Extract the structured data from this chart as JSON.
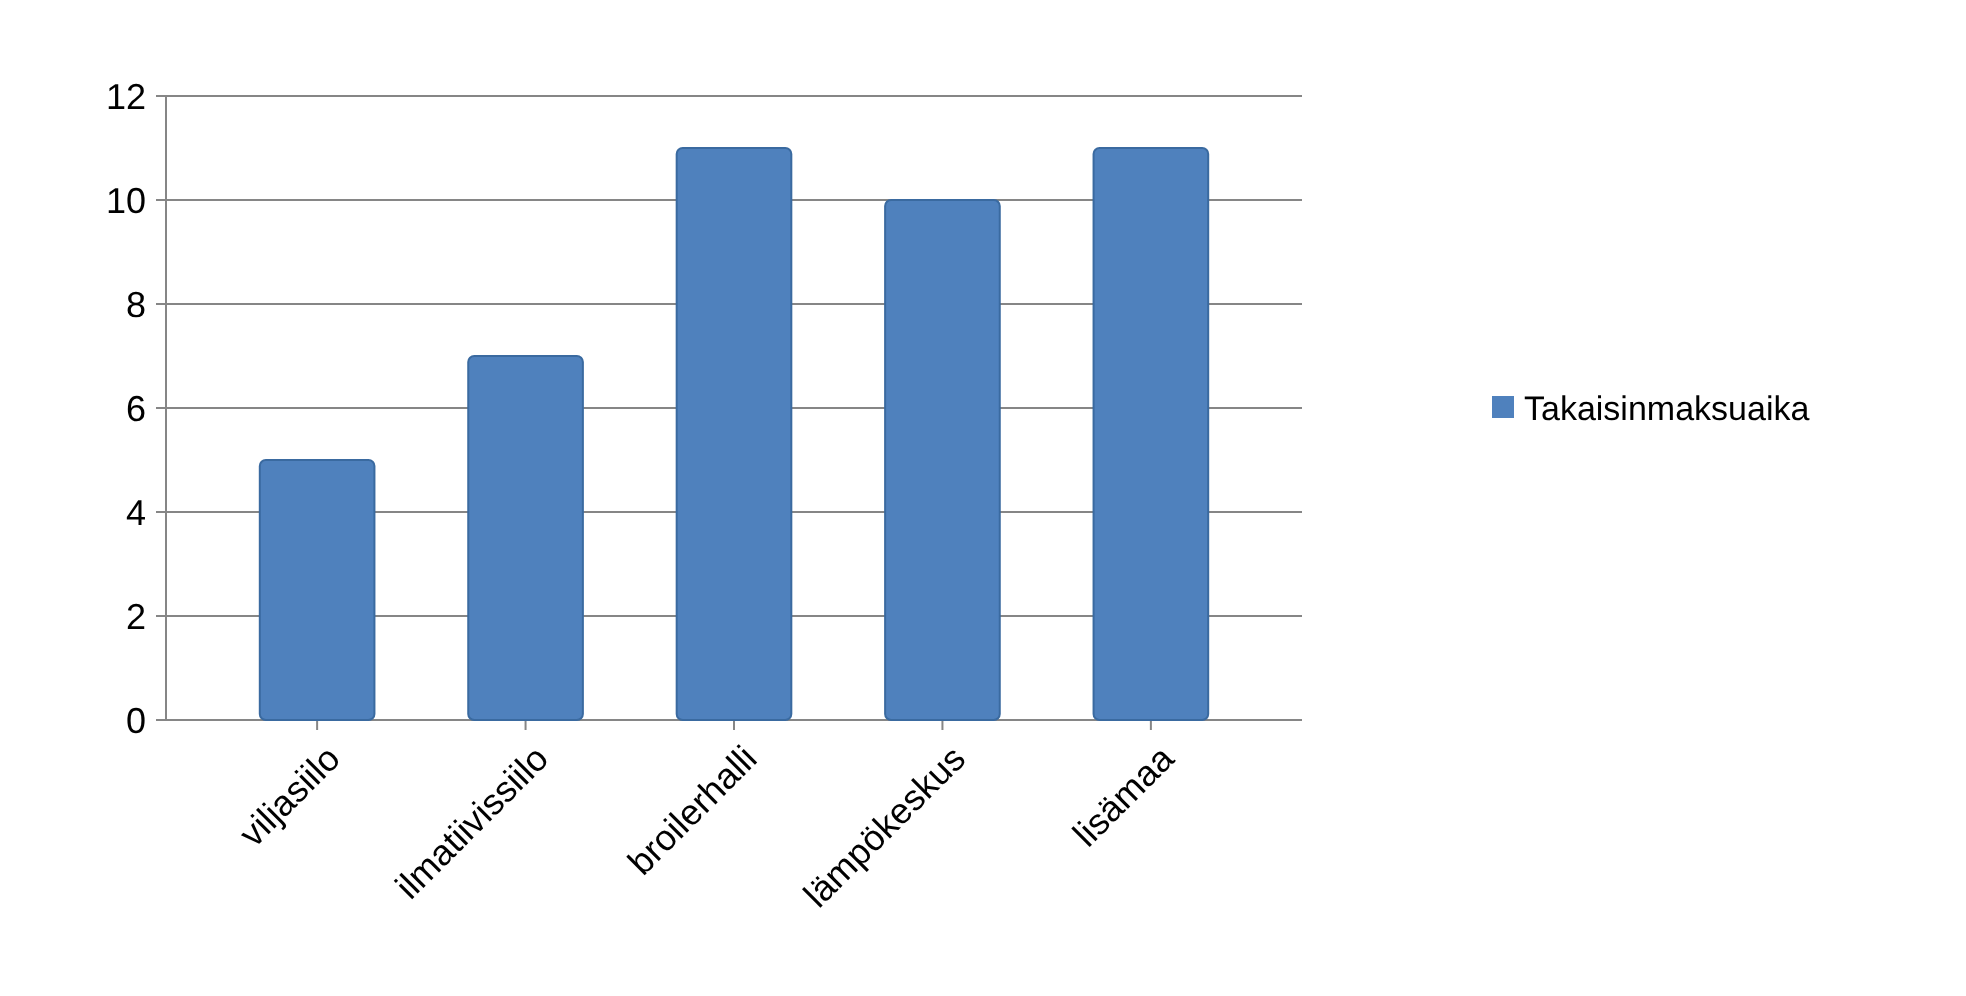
{
  "chart_data": {
    "type": "bar",
    "categories": [
      "viljasiilo",
      "ilmatiivissiilo",
      "broilerhalli",
      "lämpökeskus",
      "lisämaa"
    ],
    "series": [
      {
        "name": "Takaisinmaksuaika",
        "color": "#4f81bd",
        "values": [
          5,
          7,
          11,
          10,
          11
        ]
      }
    ],
    "ylim": [
      0,
      12
    ],
    "yticks": [
      0,
      2,
      4,
      6,
      8,
      10,
      12
    ],
    "grid": "y",
    "legend": "right"
  }
}
